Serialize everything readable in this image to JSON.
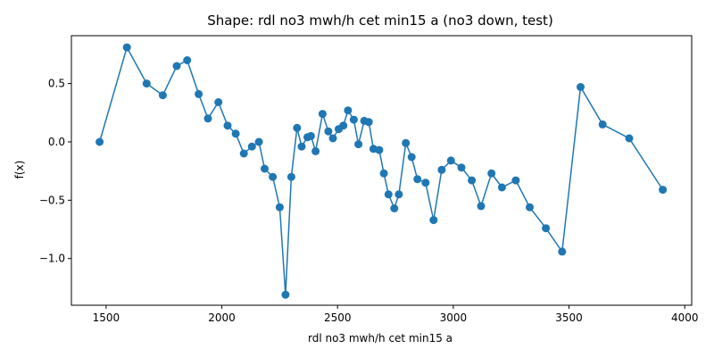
{
  "chart_data": {
    "type": "line",
    "title": "Shape: rdl no3 mwh/h cet min15 a (no3 down, test)",
    "xlabel": "rdl no3 mwh/h cet min15 a",
    "ylabel": "f(x)",
    "xlim": [
      1350,
      4030
    ],
    "ylim": [
      -1.4,
      0.91
    ],
    "xticks": [
      1500,
      2000,
      2500,
      3000,
      3500,
      4000
    ],
    "xtick_labels": [
      "1500",
      "2000",
      "2500",
      "3000",
      "3500",
      "4000"
    ],
    "yticks": [
      -1.0,
      -0.5,
      0.0,
      0.5
    ],
    "ytick_labels": [
      "−1.0",
      "−0.5",
      "0.0",
      "0.5"
    ],
    "grid": false,
    "legend": "none",
    "series": [
      {
        "color": "#1f77b4",
        "marker": "circle",
        "x": [
          1472,
          1590,
          1675,
          1745,
          1805,
          1850,
          1900,
          1940,
          1985,
          2025,
          2060,
          2095,
          2130,
          2160,
          2185,
          2220,
          2250,
          2275,
          2300,
          2325,
          2345,
          2370,
          2385,
          2405,
          2435,
          2460,
          2480,
          2505,
          2525,
          2545,
          2570,
          2590,
          2615,
          2635,
          2655,
          2680,
          2700,
          2720,
          2745,
          2765,
          2795,
          2820,
          2845,
          2880,
          2915,
          2950,
          2990,
          3035,
          3080,
          3120,
          3165,
          3210,
          3270,
          3330,
          3400,
          3470,
          3550,
          3645,
          3760,
          3905
        ],
        "y": [
          0.0,
          0.81,
          0.5,
          0.4,
          0.65,
          0.7,
          0.41,
          0.2,
          0.34,
          0.14,
          0.07,
          -0.1,
          -0.04,
          0.0,
          -0.23,
          -0.3,
          -0.56,
          -1.31,
          -0.3,
          0.12,
          -0.04,
          0.04,
          0.05,
          -0.08,
          0.24,
          0.09,
          0.03,
          0.11,
          0.14,
          0.27,
          0.19,
          -0.02,
          0.18,
          0.17,
          -0.06,
          -0.07,
          -0.27,
          -0.45,
          -0.57,
          -0.45,
          -0.01,
          -0.13,
          -0.32,
          -0.35,
          -0.67,
          -0.24,
          -0.16,
          -0.22,
          -0.33,
          -0.55,
          -0.27,
          -0.39,
          -0.33,
          -0.56,
          -0.74,
          -0.94,
          0.47,
          0.15,
          0.03,
          -0.41
        ]
      }
    ]
  }
}
